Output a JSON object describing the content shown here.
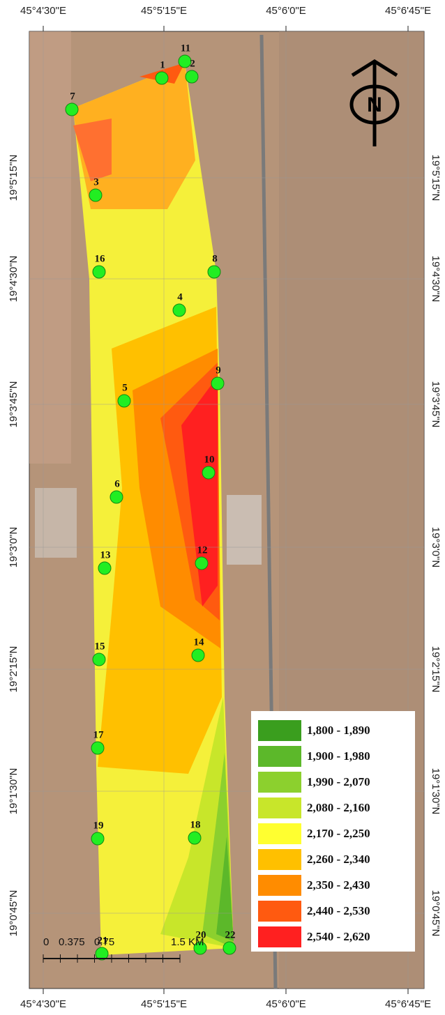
{
  "map": {
    "lon_labels": [
      "45°4'30\"E",
      "45°5'15\"E",
      "45°6'0\"E",
      "45°6'45\"E"
    ],
    "lat_labels": [
      "19°5'15\"N",
      "19°4'30\"N",
      "19°3'45\"N",
      "19°3'0\"N",
      "19°2'15\"N",
      "19°1'30\"N",
      "19°0'45\"N"
    ],
    "points": [
      "1",
      "11",
      "2",
      "7",
      "3",
      "16",
      "8",
      "4",
      "9",
      "5",
      "10",
      "6",
      "13",
      "12",
      "15",
      "14",
      "17",
      "19",
      "18",
      "21",
      "20",
      "22"
    ],
    "north": "N",
    "scale": [
      "0",
      "0.375",
      "0.75",
      "1.5 KM"
    ],
    "legend": [
      {
        "label": "1,800 - 1,890",
        "color": "#3a9e1e"
      },
      {
        "label": "1,900 - 1,980",
        "color": "#5cb82a"
      },
      {
        "label": "1,990 - 2,070",
        "color": "#8cd02e"
      },
      {
        "label": "2,080 - 2,160",
        "color": "#c8e62a"
      },
      {
        "label": "2,170 - 2,250",
        "color": "#ffff30"
      },
      {
        "label": "2,260 - 2,340",
        "color": "#ffc000"
      },
      {
        "label": "2,350 - 2,430",
        "color": "#ff8c00"
      },
      {
        "label": "2,440 - 2,530",
        "color": "#ff5a10"
      },
      {
        "label": "2,540 - 2,620",
        "color": "#ff2020"
      }
    ]
  }
}
